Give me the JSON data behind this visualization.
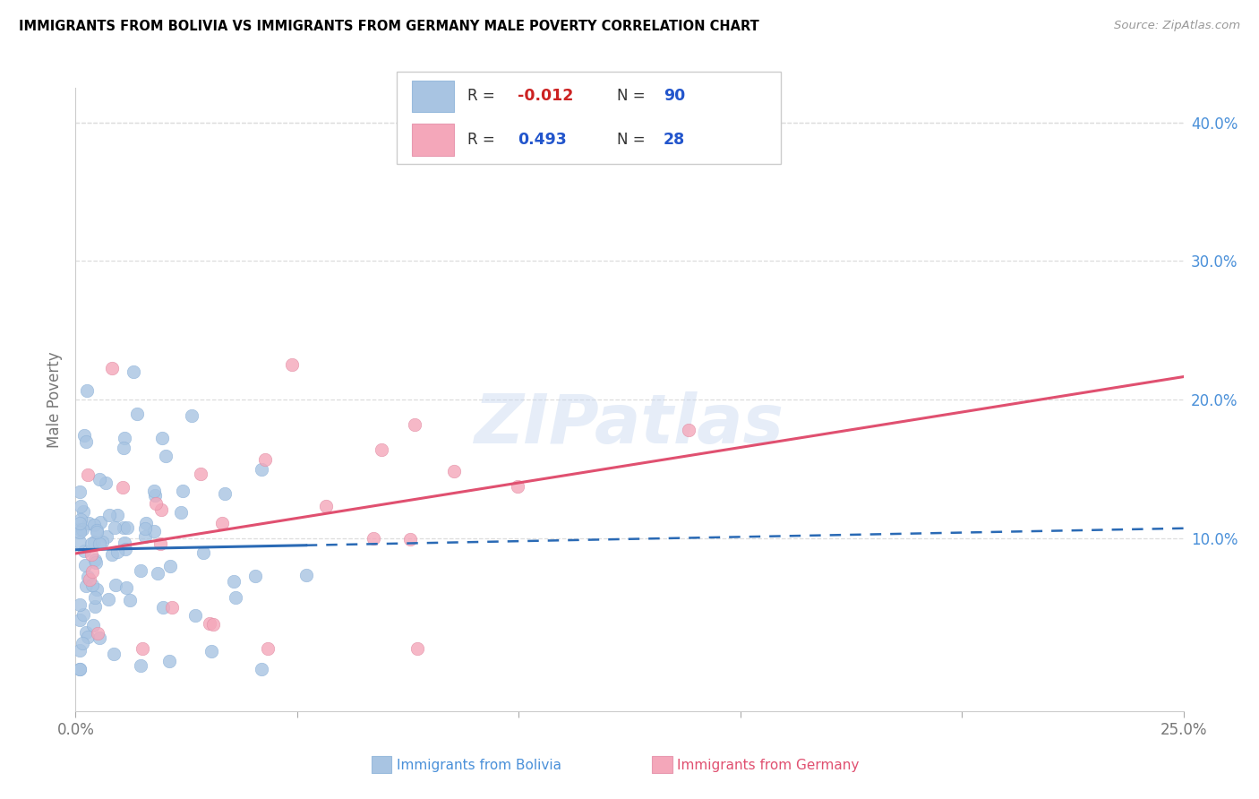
{
  "title": "IMMIGRANTS FROM BOLIVIA VS IMMIGRANTS FROM GERMANY MALE POVERTY CORRELATION CHART",
  "source": "Source: ZipAtlas.com",
  "ylabel": "Male Poverty",
  "xlim": [
    0.0,
    0.25
  ],
  "ylim": [
    -0.025,
    0.425
  ],
  "yticks": [
    0.1,
    0.2,
    0.3,
    0.4
  ],
  "ytick_labels": [
    "10.0%",
    "20.0%",
    "30.0%",
    "40.0%"
  ],
  "xticks": [
    0.0,
    0.05,
    0.1,
    0.15,
    0.2,
    0.25
  ],
  "xtick_labels": [
    "0.0%",
    "",
    "",
    "",
    "",
    "25.0%"
  ],
  "bolivia_color": "#a8c4e2",
  "germany_color": "#f4a7ba",
  "bolivia_line_color": "#2a6ab5",
  "germany_line_color": "#e05070",
  "bolivia_R": -0.012,
  "bolivia_N": 90,
  "germany_R": 0.493,
  "germany_N": 28,
  "legend_label_bolivia": "Immigrants from Bolivia",
  "legend_label_germany": "Immigrants from Germany",
  "watermark": "ZIPatlas",
  "r_color_negative": "#cc2222",
  "r_color_positive": "#2255cc",
  "n_color": "#2255cc",
  "ytick_color": "#4a90d9",
  "source_color": "#999999",
  "grid_color": "#dddddd"
}
